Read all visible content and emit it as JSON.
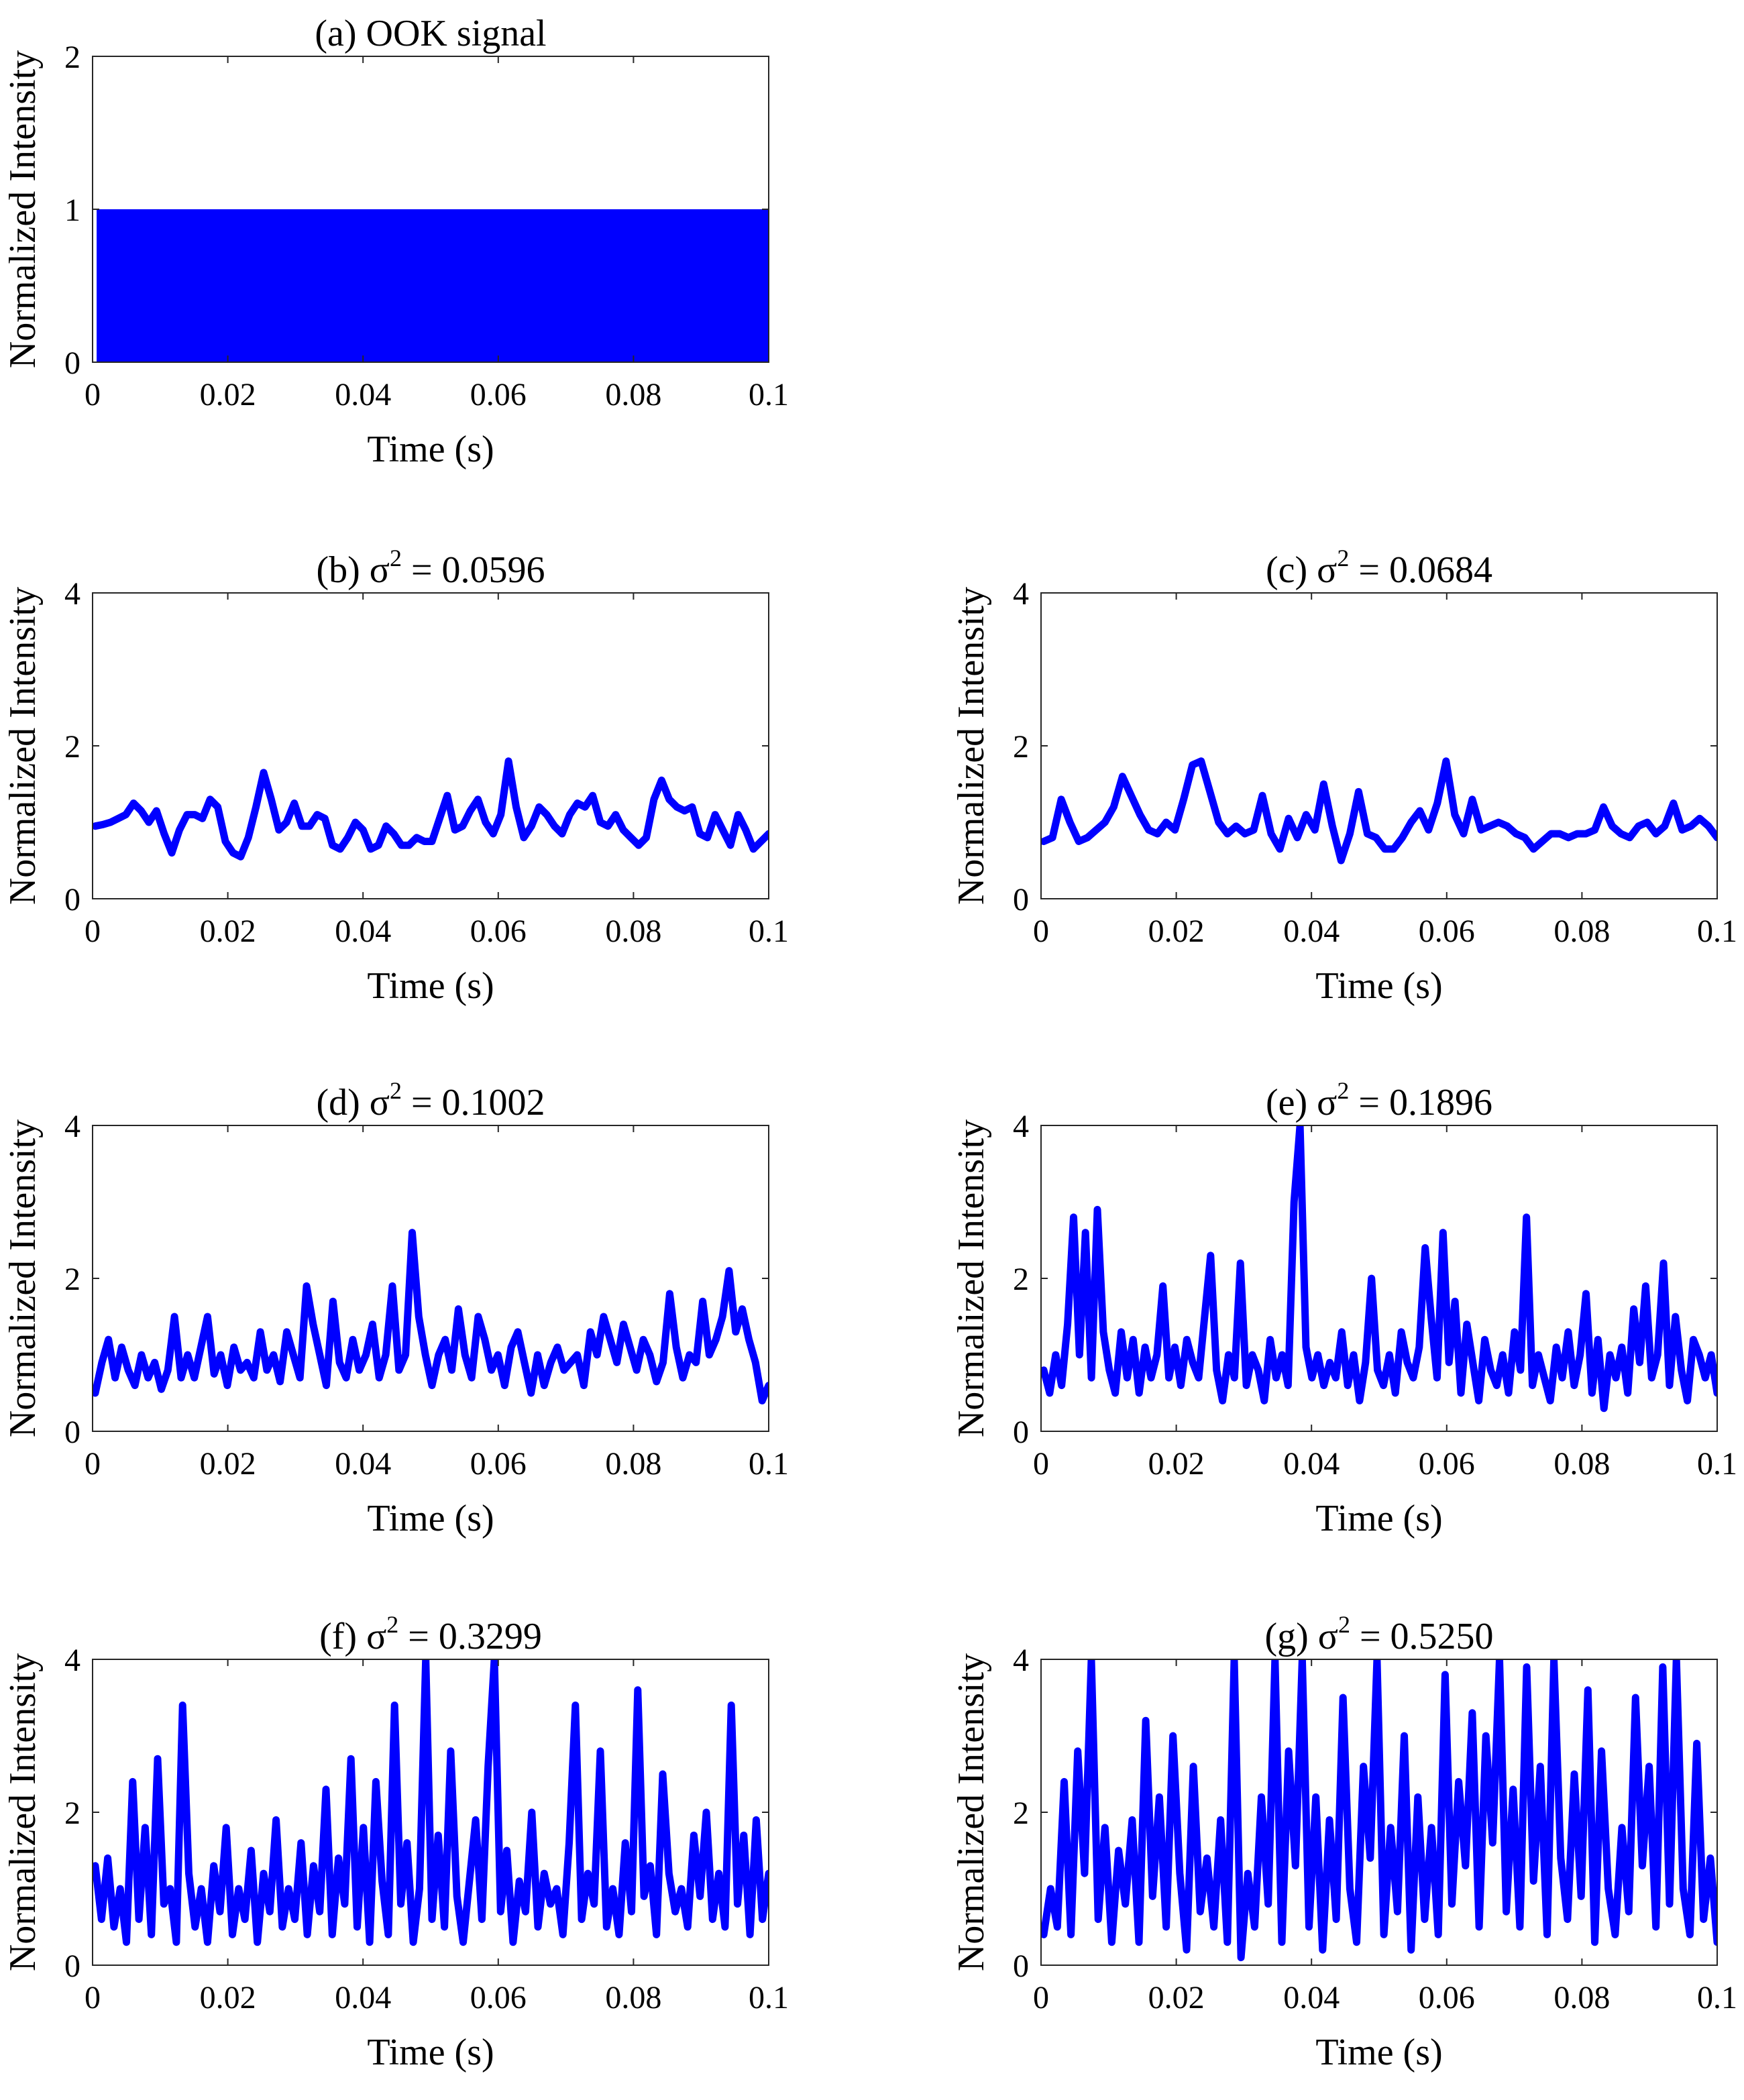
{
  "chart_data": [
    {
      "id": "a",
      "type": "area",
      "title": "(a) OOK signal",
      "title_prefix": "(a)",
      "title_text": "OOK signal",
      "sigma2": null,
      "xlabel": "Time (s)",
      "ylabel": "Normalized Intensity",
      "xlim": [
        0,
        0.1
      ],
      "ylim": [
        0,
        2
      ],
      "xticks": [
        0,
        0.02,
        0.04,
        0.06,
        0.08,
        0.1
      ],
      "xtick_labels": [
        "0",
        "0.02",
        "0.04",
        "0.06",
        "0.08",
        "0.1"
      ],
      "yticks": [
        0,
        1,
        2
      ],
      "ytick_labels": [
        "0",
        "1",
        "2"
      ],
      "series": [
        {
          "name": "OOK",
          "color": "#0000ff",
          "fill_range": [
            0,
            1
          ],
          "x_range": [
            0.0006,
            0.1
          ]
        }
      ]
    },
    {
      "id": "b",
      "type": "line",
      "title": "(b) σ2 = 0.0596",
      "title_prefix": "(b)",
      "sigma_symbol": "σ",
      "sigma_exp": "2",
      "sigma_value": "= 0.0596",
      "sigma2": 0.0596,
      "xlabel": "Time (s)",
      "ylabel": "Normalized Intensity",
      "xlim": [
        0,
        0.1
      ],
      "ylim": [
        0,
        4
      ],
      "xticks": [
        0,
        0.02,
        0.04,
        0.06,
        0.08,
        0.1
      ],
      "xtick_labels": [
        "0",
        "0.02",
        "0.04",
        "0.06",
        "0.08",
        "0.1"
      ],
      "yticks": [
        0,
        2,
        4
      ],
      "ytick_labels": [
        "0",
        "2",
        "4"
      ],
      "series": [
        {
          "name": "intensity",
          "color": "#0000ff",
          "x_start": 0.0004,
          "x_end": 0.1,
          "values": [
            0.95,
            0.97,
            1.0,
            1.05,
            1.1,
            1.25,
            1.15,
            1.0,
            1.15,
            0.85,
            0.6,
            0.9,
            1.1,
            1.1,
            1.05,
            1.3,
            1.2,
            0.75,
            0.6,
            0.55,
            0.8,
            1.2,
            1.65,
            1.3,
            0.9,
            1.0,
            1.25,
            0.95,
            0.95,
            1.1,
            1.05,
            0.7,
            0.65,
            0.8,
            1.0,
            0.9,
            0.65,
            0.7,
            0.95,
            0.85,
            0.7,
            0.7,
            0.8,
            0.75,
            0.75,
            1.05,
            1.35,
            0.9,
            0.95,
            1.15,
            1.3,
            1.0,
            0.85,
            1.1,
            1.8,
            1.2,
            0.8,
            0.95,
            1.2,
            1.1,
            0.95,
            0.85,
            1.1,
            1.25,
            1.2,
            1.35,
            1.0,
            0.95,
            1.1,
            0.9,
            0.8,
            0.7,
            0.8,
            1.3,
            1.55,
            1.3,
            1.2,
            1.15,
            1.2,
            0.85,
            0.8,
            1.1,
            0.9,
            0.7,
            1.1,
            0.9,
            0.65,
            0.75,
            0.85
          ]
        }
      ]
    },
    {
      "id": "c",
      "type": "line",
      "title": "(c) σ2 = 0.0684",
      "title_prefix": "(c)",
      "sigma_symbol": "σ",
      "sigma_exp": "2",
      "sigma_value": "= 0.0684",
      "sigma2": 0.0684,
      "xlabel": "Time (s)",
      "ylabel": "Normalized Intensity",
      "xlim": [
        0,
        0.1
      ],
      "ylim": [
        0,
        4
      ],
      "xticks": [
        0,
        0.02,
        0.04,
        0.06,
        0.08,
        0.1
      ],
      "xtick_labels": [
        "0",
        "0.02",
        "0.04",
        "0.06",
        "0.08",
        "0.1"
      ],
      "yticks": [
        0,
        2,
        4
      ],
      "ytick_labels": [
        "0",
        "2",
        "4"
      ],
      "series": [
        {
          "name": "intensity",
          "color": "#0000ff",
          "x_start": 0.0004,
          "x_end": 0.1,
          "values": [
            0.75,
            0.8,
            1.3,
            1.0,
            0.75,
            0.8,
            0.9,
            1.0,
            1.2,
            1.6,
            1.35,
            1.1,
            0.9,
            0.85,
            1.0,
            0.9,
            1.3,
            1.75,
            1.8,
            1.4,
            1.0,
            0.85,
            0.95,
            0.85,
            0.9,
            1.35,
            0.85,
            0.65,
            1.05,
            0.8,
            1.1,
            0.9,
            1.5,
            0.95,
            0.5,
            0.85,
            1.4,
            0.85,
            0.8,
            0.65,
            0.65,
            0.8,
            1.0,
            1.15,
            0.9,
            1.25,
            1.8,
            1.1,
            0.85,
            1.3,
            0.9,
            0.95,
            1.0,
            0.95,
            0.85,
            0.8,
            0.65,
            0.75,
            0.85,
            0.85,
            0.8,
            0.85,
            0.85,
            0.9,
            1.2,
            0.95,
            0.85,
            0.8,
            0.95,
            1.0,
            0.85,
            0.95,
            1.25,
            0.9,
            0.95,
            1.05,
            0.95,
            0.8
          ]
        }
      ]
    },
    {
      "id": "d",
      "type": "line",
      "title": "(d) σ2 = 0.1002",
      "title_prefix": "(d)",
      "sigma_symbol": "σ",
      "sigma_exp": "2",
      "sigma_value": "= 0.1002",
      "sigma2": 0.1002,
      "xlabel": "Time (s)",
      "ylabel": "Normalized Intensity",
      "xlim": [
        0,
        0.1
      ],
      "ylim": [
        0,
        4
      ],
      "xticks": [
        0,
        0.02,
        0.04,
        0.06,
        0.08,
        0.1
      ],
      "xtick_labels": [
        "0",
        "0.02",
        "0.04",
        "0.06",
        "0.08",
        "0.1"
      ],
      "yticks": [
        0,
        2,
        4
      ],
      "ytick_labels": [
        "0",
        "2",
        "4"
      ],
      "series": [
        {
          "name": "intensity",
          "color": "#0000ff",
          "x_start": 0.0004,
          "x_end": 0.1,
          "values": [
            0.5,
            0.9,
            1.2,
            0.7,
            1.1,
            0.8,
            0.6,
            1.0,
            0.7,
            0.9,
            0.55,
            0.8,
            1.5,
            0.7,
            1.0,
            0.7,
            1.1,
            1.5,
            0.75,
            1.0,
            0.6,
            1.1,
            0.8,
            0.9,
            0.7,
            1.3,
            0.8,
            1.0,
            0.65,
            1.3,
            1.0,
            0.7,
            1.9,
            1.4,
            1.0,
            0.6,
            1.7,
            0.9,
            0.7,
            1.2,
            0.8,
            1.0,
            1.4,
            0.7,
            1.0,
            1.9,
            0.8,
            1.0,
            2.6,
            1.5,
            1.0,
            0.6,
            1.0,
            1.2,
            0.8,
            1.6,
            1.0,
            0.7,
            1.5,
            1.2,
            0.8,
            1.0,
            0.6,
            1.1,
            1.3,
            0.9,
            0.5,
            1.0,
            0.6,
            0.9,
            1.1,
            0.8,
            0.9,
            1.0,
            0.6,
            1.3,
            1.0,
            1.5,
            1.2,
            0.9,
            1.4,
            1.1,
            0.8,
            1.2,
            1.0,
            0.65,
            0.9,
            1.8,
            1.1,
            0.7,
            1.0,
            0.9,
            1.7,
            1.0,
            1.2,
            1.5,
            2.1,
            1.3,
            1.6,
            1.2,
            0.9,
            0.4,
            0.6
          ]
        }
      ]
    },
    {
      "id": "e",
      "type": "line",
      "title": "(e) σ2 = 0.1896",
      "title_prefix": "(e)",
      "sigma_symbol": "σ",
      "sigma_exp": "2",
      "sigma_value": "= 0.1896",
      "sigma2": 0.1896,
      "xlabel": "Time (s)",
      "ylabel": "Normalized Intensity",
      "xlim": [
        0,
        0.1
      ],
      "ylim": [
        0,
        4
      ],
      "xticks": [
        0,
        0.02,
        0.04,
        0.06,
        0.08,
        0.1
      ],
      "xtick_labels": [
        "0",
        "0.02",
        "0.04",
        "0.06",
        "0.08",
        "0.1"
      ],
      "yticks": [
        0,
        2,
        4
      ],
      "ytick_labels": [
        "0",
        "2",
        "4"
      ],
      "series": [
        {
          "name": "intensity",
          "color": "#0000ff",
          "x_start": 0.0004,
          "x_end": 0.1,
          "values": [
            0.8,
            0.5,
            1.0,
            0.6,
            1.4,
            2.8,
            1.0,
            2.6,
            0.7,
            2.9,
            1.3,
            0.8,
            0.5,
            1.3,
            0.7,
            1.2,
            0.5,
            1.1,
            0.7,
            1.0,
            1.9,
            0.7,
            1.1,
            0.6,
            1.2,
            0.9,
            0.7,
            1.5,
            2.3,
            0.8,
            0.4,
            1.0,
            0.7,
            2.2,
            0.6,
            1.0,
            0.8,
            0.4,
            1.2,
            0.7,
            1.0,
            0.6,
            3.0,
            4.0,
            1.1,
            0.7,
            1.0,
            0.6,
            0.9,
            0.7,
            1.3,
            0.6,
            1.0,
            0.4,
            0.9,
            2.0,
            0.8,
            0.6,
            1.0,
            0.5,
            1.3,
            0.9,
            0.7,
            1.1,
            2.4,
            1.5,
            0.7,
            2.6,
            0.9,
            1.7,
            0.5,
            1.4,
            0.9,
            0.4,
            1.2,
            0.8,
            0.6,
            1.0,
            0.5,
            1.3,
            0.8,
            2.8,
            0.6,
            1.0,
            0.7,
            0.4,
            1.1,
            0.7,
            1.3,
            0.6,
            1.0,
            1.8,
            0.5,
            1.2,
            0.3,
            1.0,
            0.7,
            1.1,
            0.5,
            1.6,
            0.9,
            1.9,
            0.7,
            1.0,
            2.2,
            0.6,
            1.5,
            0.8,
            0.4,
            1.2,
            1.0,
            0.7,
            1.0,
            0.5
          ]
        }
      ]
    },
    {
      "id": "f",
      "type": "line",
      "title": "(f) σ2 = 0.3299",
      "title_prefix": "(f)",
      "sigma_symbol": "σ",
      "sigma_exp": "2",
      "sigma_value": "= 0.3299",
      "sigma2": 0.3299,
      "xlabel": "Time (s)",
      "ylabel": "Normalized Intensity",
      "xlim": [
        0,
        0.1
      ],
      "ylim": [
        0,
        4
      ],
      "xticks": [
        0,
        0.02,
        0.04,
        0.06,
        0.08,
        0.1
      ],
      "xtick_labels": [
        "0",
        "0.02",
        "0.04",
        "0.06",
        "0.08",
        "0.1"
      ],
      "yticks": [
        0,
        2,
        4
      ],
      "ytick_labels": [
        "0",
        "2",
        "4"
      ],
      "series": [
        {
          "name": "intensity",
          "color": "#0000ff",
          "x_start": 0.0004,
          "x_end": 0.1,
          "values": [
            1.3,
            0.6,
            1.4,
            0.5,
            1.0,
            0.3,
            2.4,
            0.6,
            1.8,
            0.4,
            2.7,
            0.8,
            1.0,
            0.3,
            3.4,
            1.2,
            0.5,
            1.0,
            0.3,
            1.3,
            0.7,
            1.8,
            0.4,
            1.0,
            0.6,
            1.5,
            0.3,
            1.2,
            0.7,
            1.9,
            0.5,
            1.0,
            0.6,
            1.6,
            0.4,
            1.3,
            0.7,
            2.3,
            0.4,
            1.4,
            0.8,
            2.7,
            0.5,
            1.8,
            0.3,
            2.4,
            1.1,
            0.4,
            3.4,
            0.8,
            1.6,
            0.3,
            1.0,
            4.0,
            0.6,
            1.7,
            0.5,
            2.8,
            0.9,
            0.3,
            1.1,
            1.9,
            0.6,
            2.6,
            4.0,
            0.7,
            1.5,
            0.3,
            1.1,
            0.7,
            2.0,
            0.5,
            1.2,
            0.8,
            1.0,
            0.4,
            1.6,
            3.4,
            0.6,
            1.2,
            0.8,
            2.8,
            0.5,
            1.0,
            0.4,
            1.6,
            0.7,
            3.6,
            0.9,
            1.3,
            0.4,
            2.5,
            1.2,
            0.7,
            1.0,
            0.5,
            1.7,
            0.9,
            2.0,
            0.6,
            1.2,
            0.5,
            3.4,
            0.8,
            1.7,
            0.4,
            1.9,
            0.6,
            1.2
          ]
        }
      ]
    },
    {
      "id": "g",
      "type": "line",
      "title": "(g) σ2 = 0.5250",
      "title_prefix": "(g)",
      "sigma_symbol": "σ",
      "sigma_exp": "2",
      "sigma_value": "= 0.5250",
      "sigma2": 0.525,
      "xlabel": "Time (s)",
      "ylabel": "Normalized Intensity",
      "xlim": [
        0,
        0.1
      ],
      "ylim": [
        0,
        4
      ],
      "xticks": [
        0,
        0.02,
        0.04,
        0.06,
        0.08,
        0.1
      ],
      "xtick_labels": [
        "0",
        "0.02",
        "0.04",
        "0.06",
        "0.08",
        "0.1"
      ],
      "yticks": [
        0,
        2,
        4
      ],
      "ytick_labels": [
        "0",
        "2",
        "4"
      ],
      "series": [
        {
          "name": "intensity",
          "color": "#0000ff",
          "x_start": 0.0004,
          "x_end": 0.1,
          "values": [
            0.4,
            1.0,
            0.5,
            2.4,
            0.4,
            2.8,
            1.2,
            4.0,
            0.6,
            1.8,
            0.3,
            1.5,
            0.8,
            1.9,
            0.3,
            3.2,
            0.9,
            2.2,
            0.5,
            3.0,
            1.2,
            0.2,
            2.6,
            0.7,
            1.4,
            0.5,
            1.9,
            0.3,
            4.0,
            0.1,
            1.2,
            0.5,
            2.2,
            0.8,
            4.0,
            0.3,
            2.8,
            1.3,
            4.0,
            0.5,
            2.2,
            0.2,
            1.9,
            0.6,
            3.5,
            1.0,
            0.3,
            2.6,
            1.4,
            4.0,
            0.4,
            1.8,
            0.7,
            3.0,
            0.2,
            2.2,
            0.6,
            1.8,
            0.4,
            3.8,
            0.8,
            2.4,
            1.3,
            3.3,
            0.5,
            3.0,
            1.6,
            4.0,
            0.7,
            2.3,
            0.5,
            3.9,
            1.1,
            2.6,
            0.4,
            4.0,
            1.4,
            0.6,
            2.5,
            0.9,
            3.6,
            0.3,
            2.8,
            1.0,
            0.4,
            1.8,
            0.7,
            3.5,
            1.3,
            2.6,
            0.5,
            3.9,
            0.8,
            4.0,
            1.0,
            0.4,
            2.9,
            0.6,
            1.4,
            0.3
          ]
        }
      ]
    }
  ]
}
